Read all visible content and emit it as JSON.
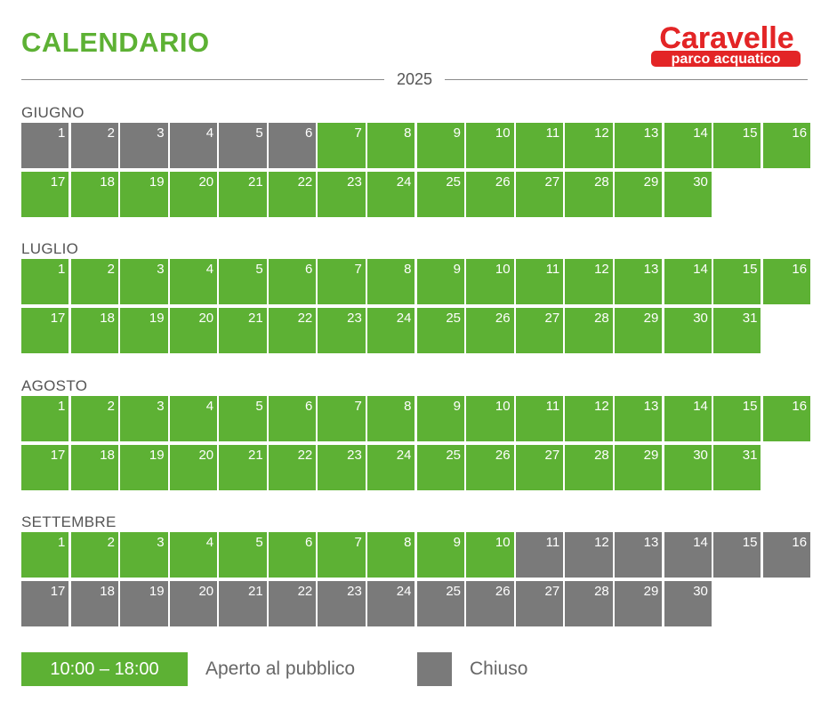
{
  "header": {
    "title": "CALENDARIO",
    "year": "2025",
    "logo": {
      "name": "Caravelle",
      "tagline": "parco acquatico",
      "color": "#e32526"
    }
  },
  "colors": {
    "open": "#5db134",
    "closed": "#7a7a7a",
    "title": "#5db134"
  },
  "months": [
    {
      "label": "GIUGNO",
      "days": 30,
      "open_from": 7,
      "open_to": 30
    },
    {
      "label": "LUGLIO",
      "days": 31,
      "open_from": 1,
      "open_to": 31
    },
    {
      "label": "AGOSTO",
      "days": 31,
      "open_from": 1,
      "open_to": 31
    },
    {
      "label": "SETTEMBRE",
      "days": 30,
      "open_from": 1,
      "open_to": 10
    }
  ],
  "legend": {
    "open_hours": "10:00 – 18:00",
    "open_label": "Aperto al pubblico",
    "closed_label": "Chiuso"
  }
}
